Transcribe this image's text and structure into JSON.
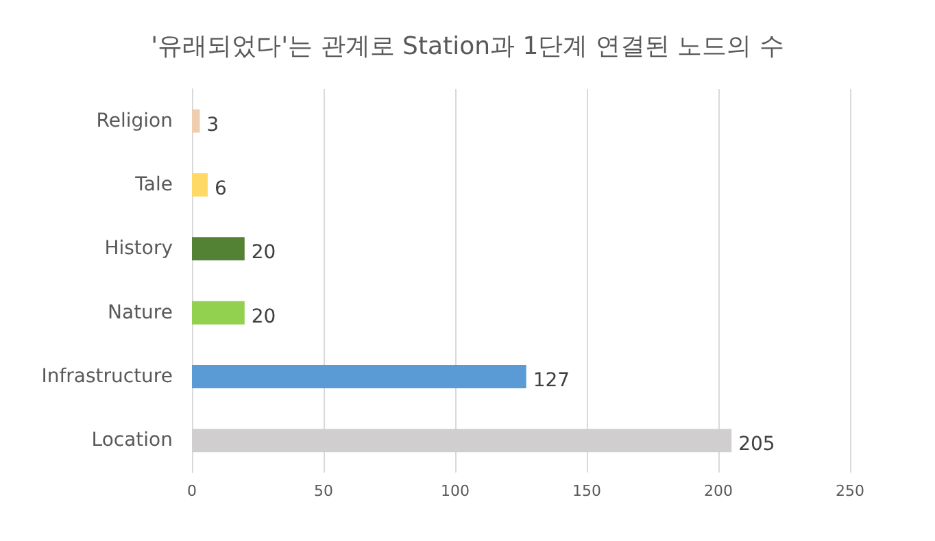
{
  "chart_data": {
    "type": "bar",
    "orientation": "horizontal",
    "title": "'유래되었다'는 관계로 Station과 1단계 연결된 노드의 수",
    "categories": [
      "Religion",
      "Tale",
      "History",
      "Nature",
      "Infrastructure",
      "Location"
    ],
    "values": [
      3,
      6,
      20,
      20,
      127,
      205
    ],
    "colors": [
      "#f1cdb0",
      "#ffd966",
      "#548235",
      "#92d050",
      "#5b9bd5",
      "#d0cece"
    ],
    "xlim": [
      0,
      250
    ],
    "xticks": [
      0,
      50,
      100,
      150,
      200,
      250
    ],
    "grid": "x",
    "data_labels": true
  }
}
